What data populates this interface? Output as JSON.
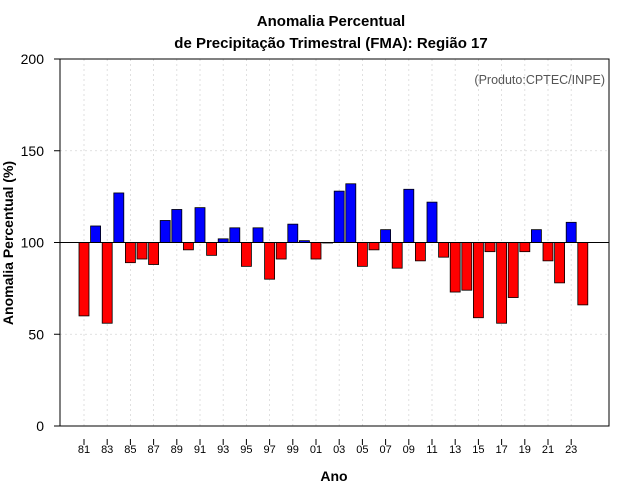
{
  "chart_data": {
    "type": "bar",
    "title_line1": "Anomalia Percentual",
    "title_line2": "de Precipitação Trimestral (FMA): Região 17",
    "xlabel": "Ano",
    "ylabel": "Anomalia Percentual (%)",
    "credit": "(Produto:CPTEC/INPE)",
    "ylim": [
      0,
      200
    ],
    "yticks": [
      "0",
      "50",
      "100",
      "150",
      "200"
    ],
    "baseline": 100,
    "colors": {
      "above": "#0000ff",
      "below": "#ff0000",
      "edge": "#000000"
    },
    "categories": [
      "81",
      "82",
      "83",
      "84",
      "85",
      "86",
      "87",
      "88",
      "89",
      "90",
      "91",
      "92",
      "93",
      "94",
      "95",
      "96",
      "97",
      "98",
      "99",
      "00",
      "01",
      "02",
      "03",
      "04",
      "05",
      "06",
      "07",
      "08",
      "09",
      "10",
      "11",
      "12",
      "13",
      "14",
      "15",
      "16",
      "17",
      "18",
      "19",
      "20",
      "21",
      "22",
      "23",
      "24"
    ],
    "xtick_labels": [
      "81",
      "83",
      "85",
      "87",
      "89",
      "91",
      "93",
      "95",
      "97",
      "99",
      "01",
      "03",
      "05",
      "07",
      "09",
      "11",
      "13",
      "15",
      "17",
      "19",
      "21",
      "23"
    ],
    "values": [
      60,
      109,
      56,
      127,
      89,
      91,
      88,
      112,
      118,
      96,
      119,
      93,
      102,
      108,
      87,
      108,
      80,
      91,
      110,
      101,
      91,
      100,
      128,
      132,
      87,
      96,
      107,
      86,
      129,
      90,
      122,
      92,
      73,
      74,
      59,
      95,
      56,
      70,
      95,
      107,
      90,
      78,
      111,
      66
    ]
  }
}
